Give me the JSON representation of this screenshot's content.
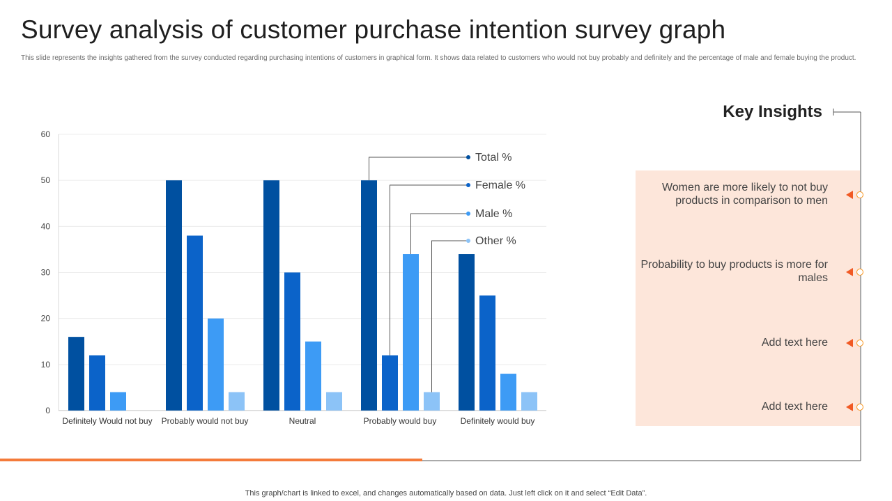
{
  "slide": {
    "title": "Survey analysis of customer purchase intention survey graph",
    "subtitle": "This slide represents the insights gathered from the survey conducted regarding purchasing intentions of customers in graphical form. It shows data related to customers who would not buy probably and definitely and the percentage of male and female buying the product.",
    "footer": "This graph/chart is linked to excel, and changes automatically based on data. Just left click on it and select “Edit Data”."
  },
  "key_insights": {
    "title": "Key Insights",
    "items": [
      "Women are more likely to not buy products in comparison to men",
      "Probability to buy products is more for males",
      "Add text here",
      "Add text here"
    ]
  },
  "colors": {
    "total": "#0050a0",
    "female": "#0b63c9",
    "male": "#3d9bf5",
    "other": "#8cc3f7",
    "accent": "#f15a24",
    "panel": "#fde6da",
    "line": "#555555"
  },
  "chart_data": {
    "type": "bar",
    "title": "",
    "xlabel": "",
    "ylabel": "",
    "ylim": [
      0,
      60
    ],
    "yticks": [
      0,
      10,
      20,
      30,
      40,
      50,
      60
    ],
    "grid": true,
    "legend_position": "top-right (callout labels)",
    "categories": [
      "Definitely Would not buy",
      "Probably would not buy",
      "Neutral",
      "Probably would buy",
      "Definitely would buy"
    ],
    "series": [
      {
        "name": "Total %",
        "values": [
          16,
          50,
          50,
          50,
          34
        ]
      },
      {
        "name": "Female %",
        "values": [
          12,
          38,
          30,
          12,
          25
        ]
      },
      {
        "name": "Male %",
        "values": [
          4,
          20,
          15,
          34,
          8
        ]
      },
      {
        "name": "Other %",
        "values": [
          0,
          4,
          4,
          4,
          4
        ]
      }
    ]
  }
}
